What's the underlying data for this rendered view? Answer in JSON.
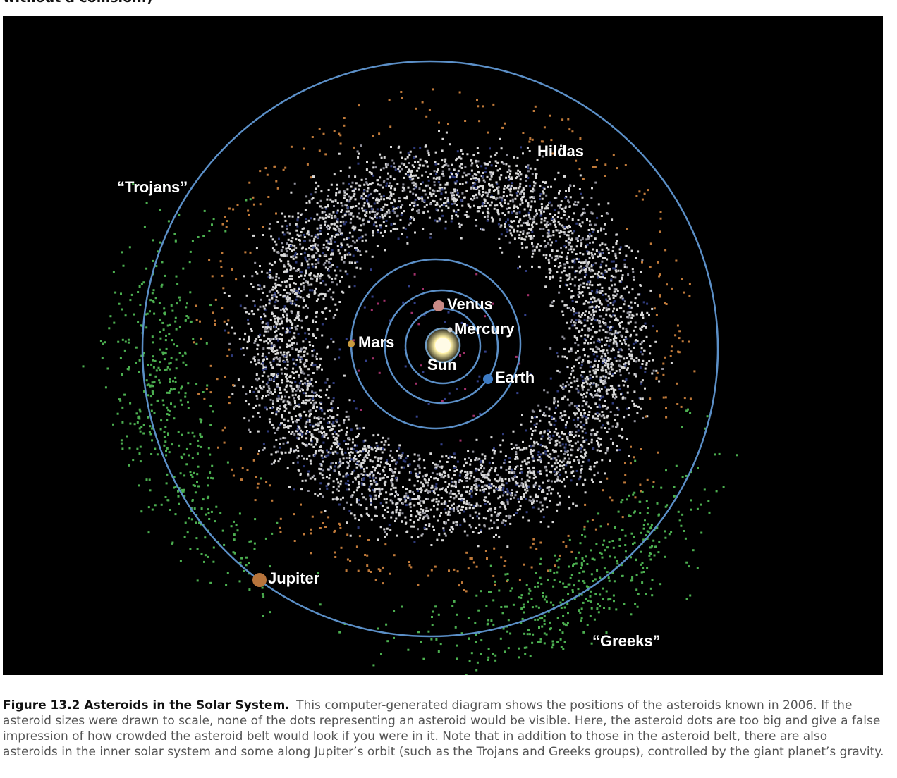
{
  "header_text": "without a collision.)",
  "figure": {
    "labels": {
      "trojans": "“Trojans”",
      "hildas": "Hildas",
      "venus": "Venus",
      "mercury": "Mercury",
      "mars": "Mars",
      "sun": "Sun",
      "earth": "Earth",
      "jupiter": "Jupiter",
      "greeks": "“Greeks”"
    }
  },
  "caption": {
    "label": "Figure 13.2 Asteroids in the Solar System.",
    "text": "This computer-generated diagram shows the positions of the asteroids known in 2006. If the asteroid sizes were drawn to scale, none of the dots representing an asteroid would be visible. Here, the asteroid dots are too big and give a false impression of how crowded the asteroid belt would look if you were in it. Note that in addition to those in the asteroid belt, there are also asteroids in the inner solar system and some along Jupiter’s orbit (such as the Trojans and Greeks groups), controlled by the giant planet’s gravity."
  }
}
